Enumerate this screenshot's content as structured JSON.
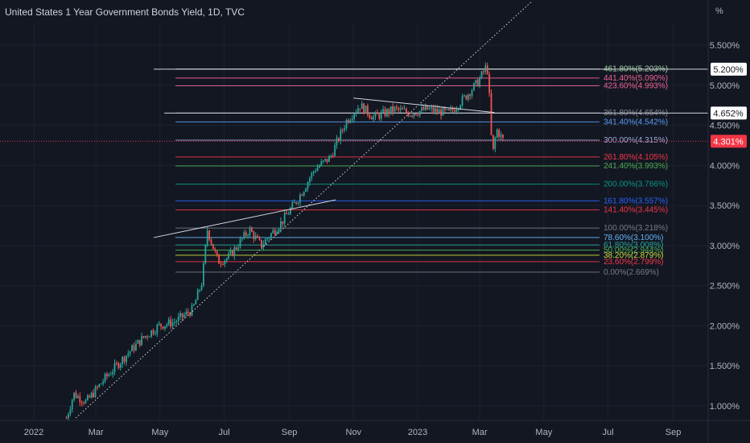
{
  "header": {
    "title": "United States 1 Year Government Bonds Yield, 1D, TVC",
    "unit": "%"
  },
  "colors": {
    "background": "#131722",
    "up": "#26a69a",
    "down": "#ef5350",
    "axis_text": "#b2b5be"
  },
  "chart_data": {
    "type": "candlestick",
    "title": "United States 1 Year Government Bonds Yield, 1D, TVC",
    "xlabel": "",
    "ylabel": "%",
    "ylim": [
      0.8,
      6.0
    ],
    "x_ticks": [
      "2022",
      "Mar",
      "May",
      "Jul",
      "Sep",
      "Nov",
      "2023",
      "Mar",
      "May",
      "Jul",
      "Sep"
    ],
    "y_ticks": [
      "1.000%",
      "1.500%",
      "2.000%",
      "2.500%",
      "3.000%",
      "3.500%",
      "4.000%",
      "4.500%",
      "5.000%",
      "5.500%"
    ],
    "y_tick_values": [
      1.0,
      1.5,
      2.0,
      2.5,
      3.0,
      3.5,
      4.0,
      4.5,
      5.0,
      5.5
    ],
    "price_path": [
      {
        "date": "2022-02-01",
        "value": 0.85
      },
      {
        "date": "2022-02-08",
        "value": 1.15
      },
      {
        "date": "2022-02-20",
        "value": 1.05
      },
      {
        "date": "2022-03-10",
        "value": 1.35
      },
      {
        "date": "2022-03-31",
        "value": 1.65
      },
      {
        "date": "2022-04-15",
        "value": 1.85
      },
      {
        "date": "2022-04-30",
        "value": 2.0
      },
      {
        "date": "2022-05-15",
        "value": 2.05
      },
      {
        "date": "2022-06-01",
        "value": 2.2
      },
      {
        "date": "2022-06-10",
        "value": 2.55
      },
      {
        "date": "2022-06-15",
        "value": 3.2
      },
      {
        "date": "2022-06-25",
        "value": 2.8
      },
      {
        "date": "2022-07-05",
        "value": 2.85
      },
      {
        "date": "2022-07-25",
        "value": 3.2
      },
      {
        "date": "2022-08-05",
        "value": 3.0
      },
      {
        "date": "2022-08-25",
        "value": 3.3
      },
      {
        "date": "2022-09-10",
        "value": 3.6
      },
      {
        "date": "2022-09-25",
        "value": 3.95
      },
      {
        "date": "2022-10-10",
        "value": 4.1
      },
      {
        "date": "2022-10-25",
        "value": 4.55
      },
      {
        "date": "2022-11-07",
        "value": 4.75
      },
      {
        "date": "2022-11-20",
        "value": 4.6
      },
      {
        "date": "2022-12-10",
        "value": 4.7
      },
      {
        "date": "2022-12-25",
        "value": 4.65
      },
      {
        "date": "2023-01-10",
        "value": 4.7
      },
      {
        "date": "2023-01-31",
        "value": 4.65
      },
      {
        "date": "2023-02-15",
        "value": 4.85
      },
      {
        "date": "2023-02-28",
        "value": 5.05
      },
      {
        "date": "2023-03-08",
        "value": 5.25
      },
      {
        "date": "2023-03-10",
        "value": 4.9
      },
      {
        "date": "2023-03-13",
        "value": 4.1
      },
      {
        "date": "2023-03-17",
        "value": 4.45
      },
      {
        "date": "2023-03-24",
        "value": 4.3
      }
    ],
    "fib_levels": [
      {
        "label": "461.80%(5.203%)",
        "value": 5.203,
        "color": "#a5d6a7"
      },
      {
        "label": "441.40%(5.090%)",
        "value": 5.09,
        "color": "#f06292"
      },
      {
        "label": "423.60%(4.993%)",
        "value": 4.993,
        "color": "#f06292"
      },
      {
        "label": "361.80%(4.654%)",
        "value": 4.654,
        "color": "#868993"
      },
      {
        "label": "341.40%(4.542%)",
        "value": 4.542,
        "color": "#5b9cf6"
      },
      {
        "label": "300.00%(4.315%)",
        "value": 4.315,
        "color": "#9fa8da"
      },
      {
        "label": "261.80%(4.105%)",
        "value": 4.105,
        "color": "#f23645"
      },
      {
        "label": "241.40%(3.993%)",
        "value": 3.993,
        "color": "#4caf50"
      },
      {
        "label": "200.00%(3.766%)",
        "value": 3.766,
        "color": "#089981"
      },
      {
        "label": "161.80%(3.557%)",
        "value": 3.557,
        "color": "#2962ff"
      },
      {
        "label": "141.40%(3.445%)",
        "value": 3.445,
        "color": "#f23645"
      },
      {
        "label": "100.00%(3.218%)",
        "value": 3.218,
        "color": "#787b86"
      },
      {
        "label": "78.60%(3.100%)",
        "value": 3.1,
        "color": "#64b5f6"
      },
      {
        "label": "61.80%(3.008%)",
        "value": 3.008,
        "color": "#26a69a"
      },
      {
        "label": "50.00%(2.944%)",
        "value": 2.944,
        "color": "#4caf50"
      },
      {
        "label": "38.20%(2.879%)",
        "value": 2.879,
        "color": "#cddc39"
      },
      {
        "label": "23.60%(2.799%)",
        "value": 2.799,
        "color": "#f23645"
      },
      {
        "label": "0.00%(2.669%)",
        "value": 2.669,
        "color": "#787b86"
      }
    ],
    "horizontal_lines": [
      {
        "value": 5.2,
        "label": "5.200%",
        "start_date": "2022-04-25"
      },
      {
        "value": 4.652,
        "label": "4.652%",
        "start_date": "2022-05-05"
      }
    ],
    "trend_lines": [
      {
        "from": {
          "date": "2022-02-10",
          "value": 0.85
        },
        "to": {
          "date": "2023-04-20",
          "value": 6.05
        },
        "style": "dotted"
      },
      {
        "from": {
          "date": "2022-04-25",
          "value": 3.1
        },
        "to": {
          "date": "2022-10-15",
          "value": 3.57
        },
        "style": "solid"
      },
      {
        "from": {
          "date": "2022-11-01",
          "value": 4.84
        },
        "to": {
          "date": "2023-03-15",
          "value": 4.66
        },
        "style": "solid"
      }
    ],
    "current_price": {
      "value": 4.301,
      "label": "4.301%",
      "color": "#f23645"
    }
  }
}
